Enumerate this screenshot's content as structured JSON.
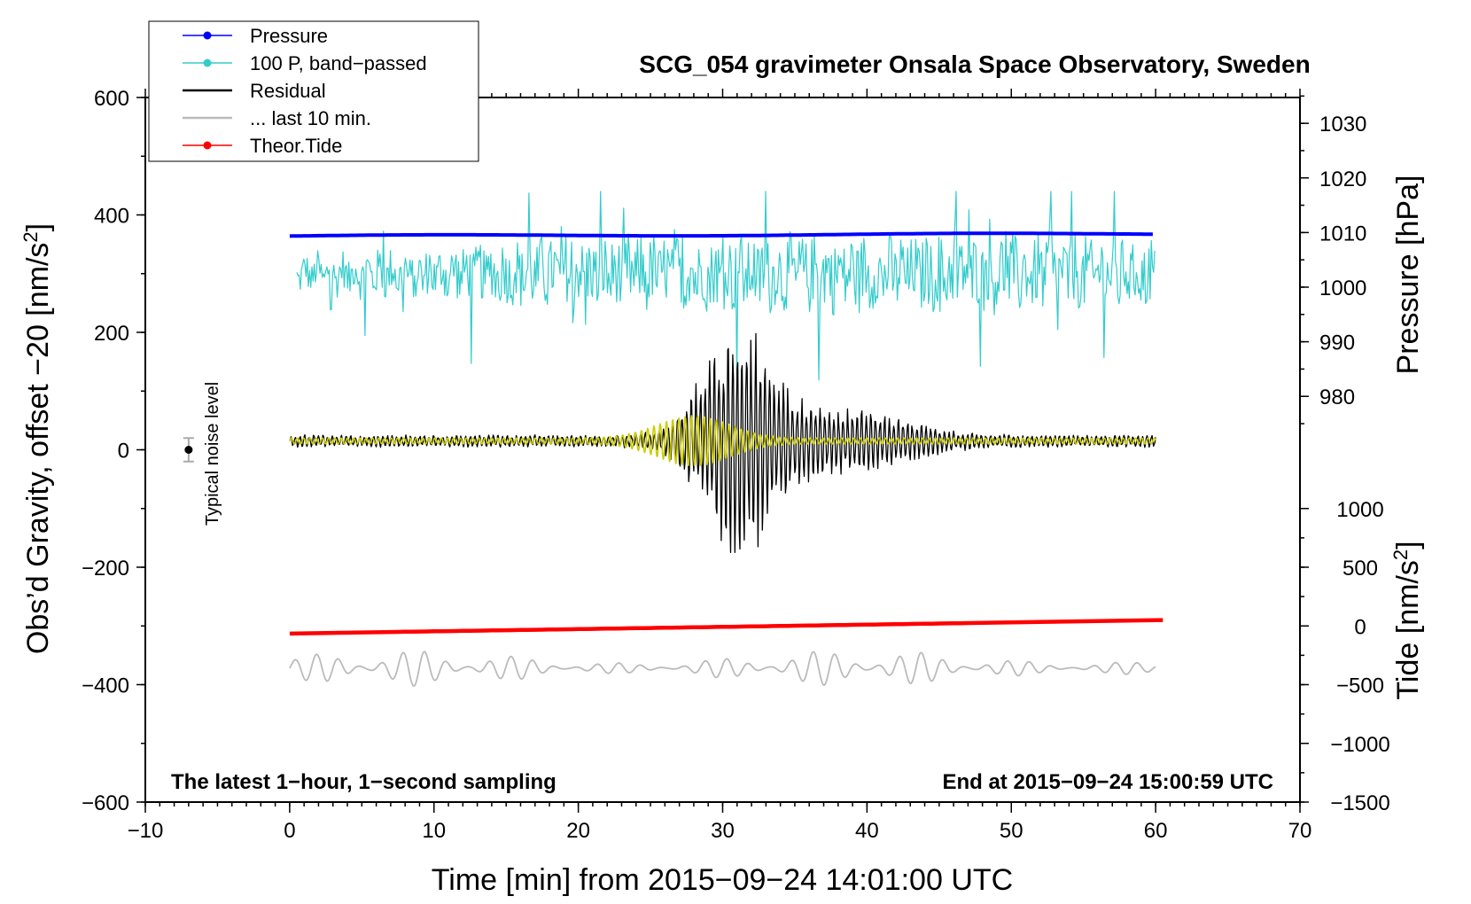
{
  "chart_data": {
    "type": "line",
    "title": "SCG_054 gravimeter Onsala Space Observatory, Sweden",
    "xlabel": "Time [min] from 2015−09−24 14:01:00 UTC",
    "ylabel_left_prefix": "Obs’d Gravity, offset −20 [nm/s",
    "ylabel_left_sup": "2",
    "ylabel_left_suffix": "]",
    "ylabel_pressure": "Pressure [hPa]",
    "ylabel_tide_prefix": "Tide [nm/s",
    "ylabel_tide_sup": "2",
    "ylabel_tide_suffix": "]",
    "xlim": [
      -10,
      70
    ],
    "ylim": [
      -600,
      600
    ],
    "x_ticks": [
      -10,
      0,
      10,
      20,
      30,
      40,
      50,
      60,
      70
    ],
    "x_tick_labels": [
      "−10",
      "0",
      "10",
      "20",
      "30",
      "40",
      "50",
      "60",
      "70"
    ],
    "y_ticks": [
      600,
      400,
      200,
      0,
      -200,
      -400,
      -600
    ],
    "y_tick_labels": [
      "600",
      "400",
      "200",
      "0",
      "−200",
      "−400",
      "−600"
    ],
    "pressure_axis": {
      "ticks": [
        1030,
        1020,
        1010,
        1000,
        990,
        980
      ],
      "tick_labels": [
        "1030",
        "1020",
        "1010",
        "1000",
        "990",
        "980"
      ],
      "map_note": "1010 hPa at gravity 370; 10 hPa per 93 gravity units"
    },
    "tide_axis": {
      "ticks": [
        1000,
        500,
        0,
        -500,
        -1000,
        -1500
      ],
      "tick_labels": [
        "1000",
        "500",
        "0",
        "−500",
        "−1000",
        "−1500"
      ],
      "map_note": "0 nm/s2 at gravity -300; 500 per 100 gravity units"
    },
    "legend": [
      {
        "label": "Pressure",
        "color": "#0000ff",
        "marker": true
      },
      {
        "label": "100 P, band−passed",
        "color": "#33cccc",
        "marker": true
      },
      {
        "label": "Residual",
        "color": "#000000",
        "marker": false
      },
      {
        "label": "... last 10 min.",
        "color": "#bbbbbb",
        "marker": false
      },
      {
        "label": "Theor.Tide",
        "color": "#ff0000",
        "marker": true
      }
    ],
    "series": [
      {
        "name": "Pressure",
        "color": "#0000ff",
        "x_range": [
          0,
          60
        ],
        "y_start": 364,
        "y_end": 368
      },
      {
        "name": "100 P, band−passed",
        "color": "#33cccc",
        "x_range": [
          0.5,
          60
        ],
        "y_center": 300,
        "y_min": 115,
        "y_max": 440
      },
      {
        "name": "Residual",
        "color": "#000000",
        "x_range": [
          0,
          60
        ],
        "y_center": 15,
        "y_min": -175,
        "y_max": 218,
        "peak_x": 31
      },
      {
        "name": "Filtered residual",
        "color": "#cccc00",
        "x_range": [
          0,
          60
        ],
        "y_center": 15,
        "y_min": -30,
        "y_max": 60,
        "peak_x": 28
      },
      {
        "name": "... last 10 min.",
        "color": "#bbbbbb",
        "x_range": [
          0,
          60
        ],
        "y_center": -372,
        "y_min": -422,
        "y_max": -330
      },
      {
        "name": "Theor.Tide",
        "color": "#ff0000",
        "x_range": [
          0,
          60.5
        ],
        "y_start": -313,
        "y_end": -290
      }
    ],
    "noise_marker": {
      "x": -7,
      "y": 0,
      "err": 20,
      "label": "Typical noise level"
    },
    "annotation_left": "The latest 1−hour, 1−second sampling",
    "annotation_right": "End at 2015−09−24 15:00:59 UTC"
  }
}
